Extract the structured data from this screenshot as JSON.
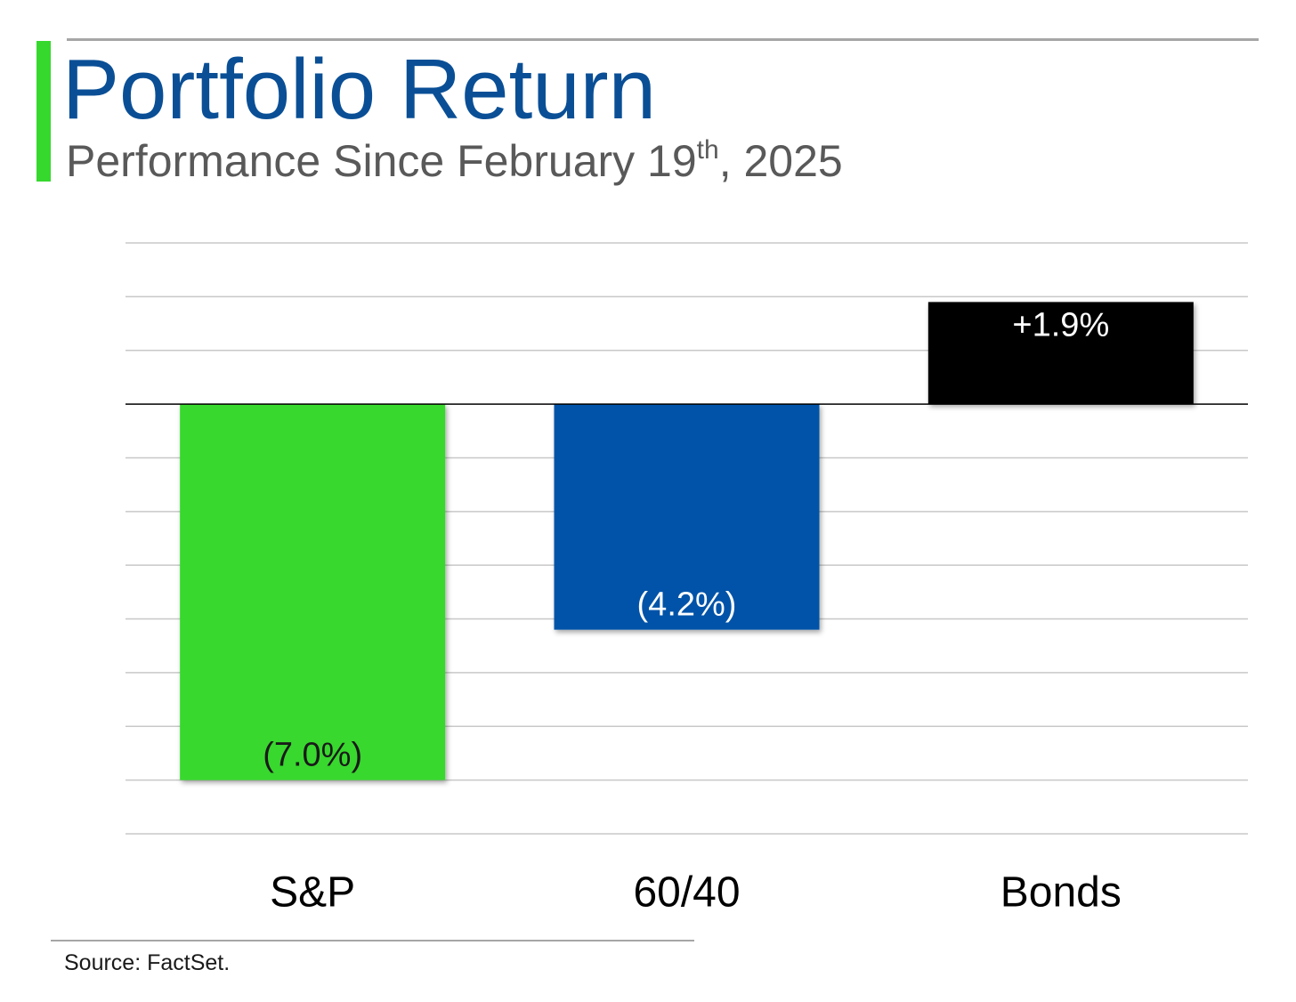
{
  "header": {
    "title": "Portfolio Return",
    "subtitle_main": "Performance Since February 19",
    "subtitle_sup": "th",
    "subtitle_tail": ", 2025"
  },
  "colors": {
    "accent": "#37d82e",
    "title": "#0a4f96",
    "subtitle": "#595959",
    "grid": "#c8c8c8",
    "zero_line": "#000000"
  },
  "chart_data": {
    "type": "bar",
    "title": "Portfolio Return",
    "subtitle": "Performance Since February 19th, 2025",
    "categories": [
      "S&P",
      "60/40",
      "Bonds"
    ],
    "values": [
      -7.0,
      -4.2,
      1.9
    ],
    "data_labels": [
      "(7.0%)",
      "(4.2%)",
      "+1.9%"
    ],
    "bar_colors": [
      "#37d82e",
      "#0352a8",
      "#000000"
    ],
    "label_colors": [
      "#1a1a1a",
      "#ffffff",
      "#ffffff"
    ],
    "ylim": [
      -8,
      3
    ],
    "gridline_step": 1,
    "grid": true,
    "legend": "none",
    "xlabel": "",
    "ylabel": ""
  },
  "footer": {
    "source": "Source: FactSet."
  }
}
